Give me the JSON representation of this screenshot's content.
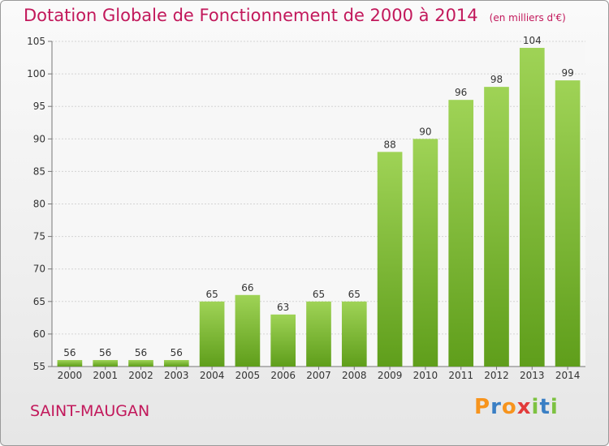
{
  "title": "Dotation Globale de Fonctionnement de 2000 à 2014",
  "subtitle": "(en milliers d'€)",
  "commune": "SAINT-MAUGAN",
  "logo": {
    "letters": [
      {
        "ch": "P",
        "color": "#f7941d"
      },
      {
        "ch": "r",
        "color": "#3a7fc4"
      },
      {
        "ch": "o",
        "color": "#f7941d"
      },
      {
        "ch": "x",
        "color": "#e23b3b"
      },
      {
        "ch": "i",
        "color": "#7dc241"
      },
      {
        "ch": "t",
        "color": "#3a7fc4"
      },
      {
        "ch": "i",
        "color": "#7dc241"
      }
    ]
  },
  "chart_data": {
    "type": "bar",
    "categories": [
      "2000",
      "2001",
      "2002",
      "2003",
      "2004",
      "2005",
      "2006",
      "2007",
      "2008",
      "2009",
      "2010",
      "2011",
      "2012",
      "2013",
      "2014"
    ],
    "values": [
      56,
      56,
      56,
      56,
      65,
      66,
      63,
      65,
      65,
      88,
      90,
      96,
      98,
      104,
      99
    ],
    "ylim": [
      55,
      105
    ],
    "yticks": [
      55,
      60,
      65,
      70,
      75,
      80,
      85,
      90,
      95,
      100,
      105
    ],
    "grid": true,
    "bar_color_top": "#9fd356",
    "bar_color_bottom": "#5f9e1b",
    "text_color": "#c2185b"
  }
}
